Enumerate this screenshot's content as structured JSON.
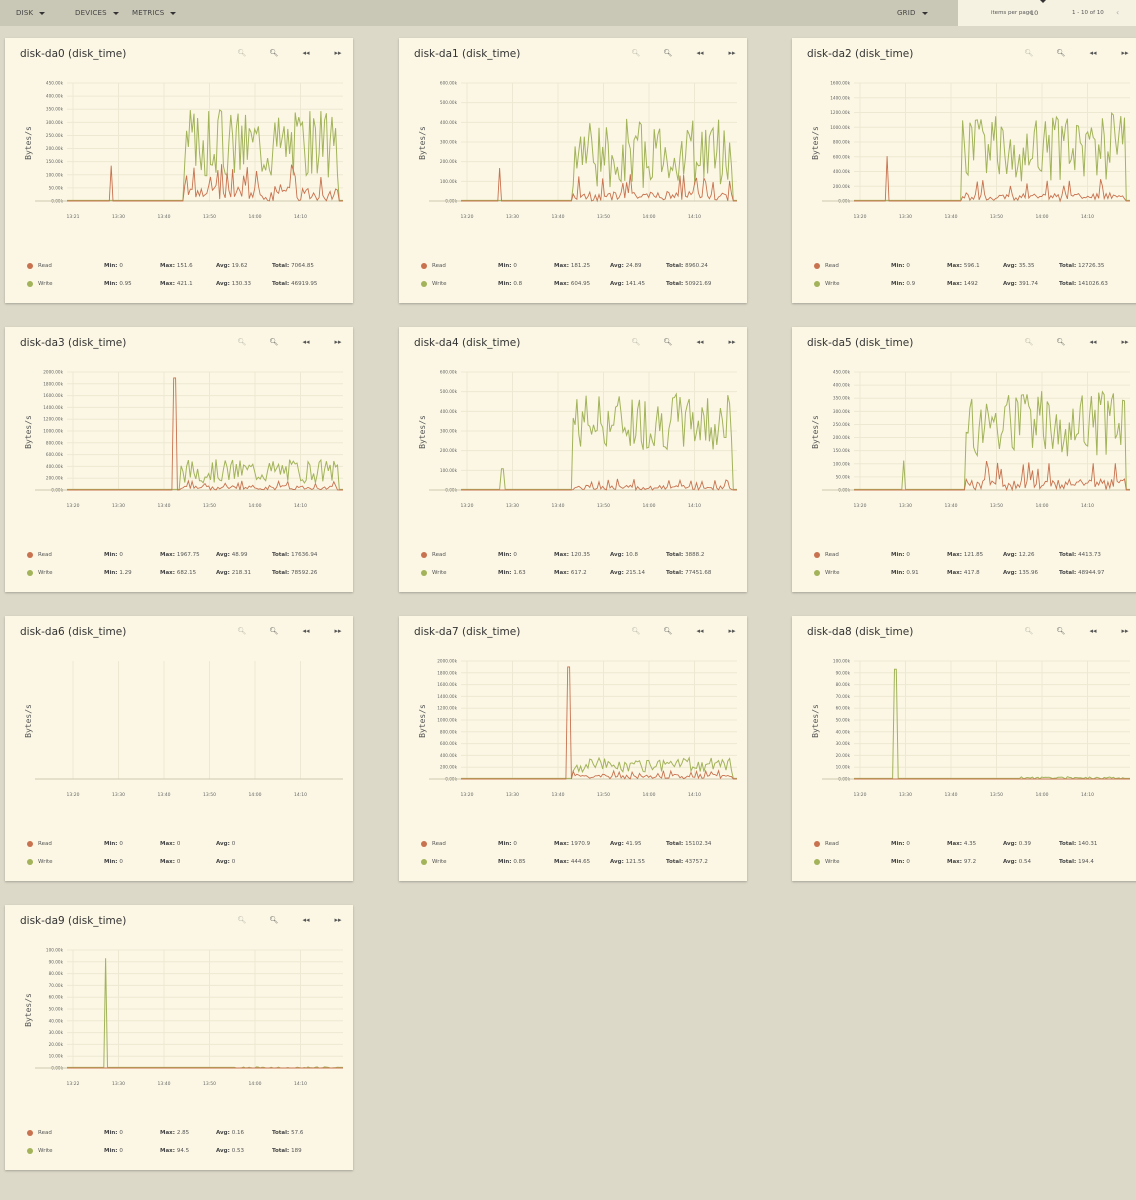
{
  "topbar": {
    "menus": [
      "DISK",
      "DEVICES",
      "METRICS"
    ],
    "grid": "GRID",
    "items_per_page_label": "items per page",
    "items_per_page": "10",
    "range": "1 - 10 of 10",
    "prev": "‹"
  },
  "colors": {
    "read": "#c8724f",
    "write": "#a3b35a",
    "background": "#fbf7e4",
    "grid": "#ece8d2"
  },
  "icons": [
    "zoom-out-icon",
    "zoom-in-icon",
    "rewind-icon",
    "fast-forward-icon"
  ],
  "labels": {
    "ylabel": "Bytes/s",
    "read": "Read",
    "write": "Write",
    "min": "Min:",
    "max": "Max:",
    "avg": "Avg:",
    "total": "Total:"
  },
  "cards": [
    {
      "title": "disk-da0 (disk_time)",
      "yticks": [
        "450.00k",
        "400.00k",
        "350.00k",
        "300.00k",
        "250.00k",
        "200.00k",
        "150.00k",
        "100.00k",
        "50.00k",
        "0.00k"
      ],
      "xticks": [
        "13:21",
        "13:30",
        "13:40",
        "13:50",
        "14:00",
        "14:10"
      ],
      "read": {
        "min": "0",
        "max": "151.6",
        "avg": "19.62",
        "total": "7064.85"
      },
      "write": {
        "min": "0.95",
        "max": "421.1",
        "avg": "130.33",
        "total": "46919.95"
      }
    },
    {
      "title": "disk-da1 (disk_time)",
      "yticks": [
        "600.00k",
        "500.00k",
        "400.00k",
        "300.00k",
        "200.00k",
        "100.00k",
        "0.00k"
      ],
      "xticks": [
        "13:20",
        "13:30",
        "13:40",
        "13:50",
        "14:00",
        "14:10"
      ],
      "read": {
        "min": "0",
        "max": "181.25",
        "avg": "24.89",
        "total": "8960.24"
      },
      "write": {
        "min": "0.8",
        "max": "604.95",
        "avg": "141.45",
        "total": "50921.69"
      }
    },
    {
      "title": "disk-da2 (disk_time)",
      "yticks": [
        "1600.00k",
        "1400.00k",
        "1200.00k",
        "1000.00k",
        "800.00k",
        "600.00k",
        "400.00k",
        "200.00k",
        "0.00k"
      ],
      "xticks": [
        "13:20",
        "13:30",
        "13:40",
        "13:50",
        "14:00",
        "14:10"
      ],
      "read": {
        "min": "0",
        "max": "596.1",
        "avg": "35.35",
        "total": "12726.35"
      },
      "write": {
        "min": "0.9",
        "max": "1492",
        "avg": "391.74",
        "total": "141026.63"
      }
    },
    {
      "title": "disk-da3 (disk_time)",
      "yticks": [
        "2000.00k",
        "1800.00k",
        "1600.00k",
        "1400.00k",
        "1200.00k",
        "1000.00k",
        "800.00k",
        "600.00k",
        "400.00k",
        "200.00k",
        "0.00k"
      ],
      "xticks": [
        "13:20",
        "13:30",
        "13:40",
        "13:50",
        "14:00",
        "14:10"
      ],
      "read": {
        "min": "0",
        "max": "1967.75",
        "avg": "48.99",
        "total": "17636.94"
      },
      "write": {
        "min": "1.29",
        "max": "682.15",
        "avg": "218.31",
        "total": "78592.26"
      }
    },
    {
      "title": "disk-da4 (disk_time)",
      "yticks": [
        "600.00k",
        "500.00k",
        "400.00k",
        "300.00k",
        "200.00k",
        "100.00k",
        "0.00k"
      ],
      "xticks": [
        "13:20",
        "13:30",
        "13:40",
        "13:50",
        "14:00",
        "14:10"
      ],
      "read": {
        "min": "0",
        "max": "120.35",
        "avg": "10.8",
        "total": "3888.2"
      },
      "write": {
        "min": "1.63",
        "max": "617.2",
        "avg": "215.14",
        "total": "77451.68"
      }
    },
    {
      "title": "disk-da5 (disk_time)",
      "yticks": [
        "450.00k",
        "400.00k",
        "350.00k",
        "300.00k",
        "250.00k",
        "200.00k",
        "150.00k",
        "100.00k",
        "50.00k",
        "0.00k"
      ],
      "xticks": [
        "13:20",
        "13:30",
        "13:40",
        "13:50",
        "14:00",
        "14:10"
      ],
      "read": {
        "min": "0",
        "max": "121.85",
        "avg": "12.26",
        "total": "4413.73"
      },
      "write": {
        "min": "0.91",
        "max": "417.8",
        "avg": "135.96",
        "total": "48944.97"
      }
    },
    {
      "title": "disk-da6 (disk_time)",
      "yticks": [],
      "xticks": [
        "13:20",
        "13:30",
        "13:40",
        "13:50",
        "14:00",
        "14:10"
      ],
      "read": {
        "min": "0",
        "max": "0",
        "avg": "0",
        "total": ""
      },
      "write": {
        "min": "0",
        "max": "0",
        "avg": "0",
        "total": ""
      }
    },
    {
      "title": "disk-da7 (disk_time)",
      "yticks": [
        "2000.00k",
        "1800.00k",
        "1600.00k",
        "1400.00k",
        "1200.00k",
        "1000.00k",
        "800.00k",
        "600.00k",
        "400.00k",
        "200.00k",
        "0.00k"
      ],
      "xticks": [
        "13:20",
        "13:30",
        "13:40",
        "13:50",
        "14:00",
        "14:10"
      ],
      "read": {
        "min": "0",
        "max": "1970.9",
        "avg": "41.95",
        "total": "15102.34"
      },
      "write": {
        "min": "0.85",
        "max": "444.65",
        "avg": "121.55",
        "total": "43757.2"
      }
    },
    {
      "title": "disk-da8 (disk_time)",
      "yticks": [
        "100.00k",
        "90.00k",
        "80.00k",
        "70.00k",
        "60.00k",
        "50.00k",
        "40.00k",
        "30.00k",
        "20.00k",
        "10.00k",
        "0.00k"
      ],
      "xticks": [
        "13:20",
        "13:30",
        "13:40",
        "13:50",
        "14:00",
        "14:10"
      ],
      "read": {
        "min": "0",
        "max": "4.35",
        "avg": "0.39",
        "total": "140.31"
      },
      "write": {
        "min": "0",
        "max": "97.2",
        "avg": "0.54",
        "total": "194.4"
      }
    },
    {
      "title": "disk-da9 (disk_time)",
      "yticks": [
        "100.00k",
        "90.00k",
        "80.00k",
        "70.00k",
        "60.00k",
        "50.00k",
        "40.00k",
        "30.00k",
        "20.00k",
        "10.00k",
        "0.00k"
      ],
      "xticks": [
        "13:22",
        "13:30",
        "13:40",
        "13:50",
        "14:00",
        "14:10"
      ],
      "read": {
        "min": "0",
        "max": "2.85",
        "avg": "0.16",
        "total": "57.6"
      },
      "write": {
        "min": "0",
        "max": "94.5",
        "avg": "0.53",
        "total": "189"
      }
    }
  ]
}
